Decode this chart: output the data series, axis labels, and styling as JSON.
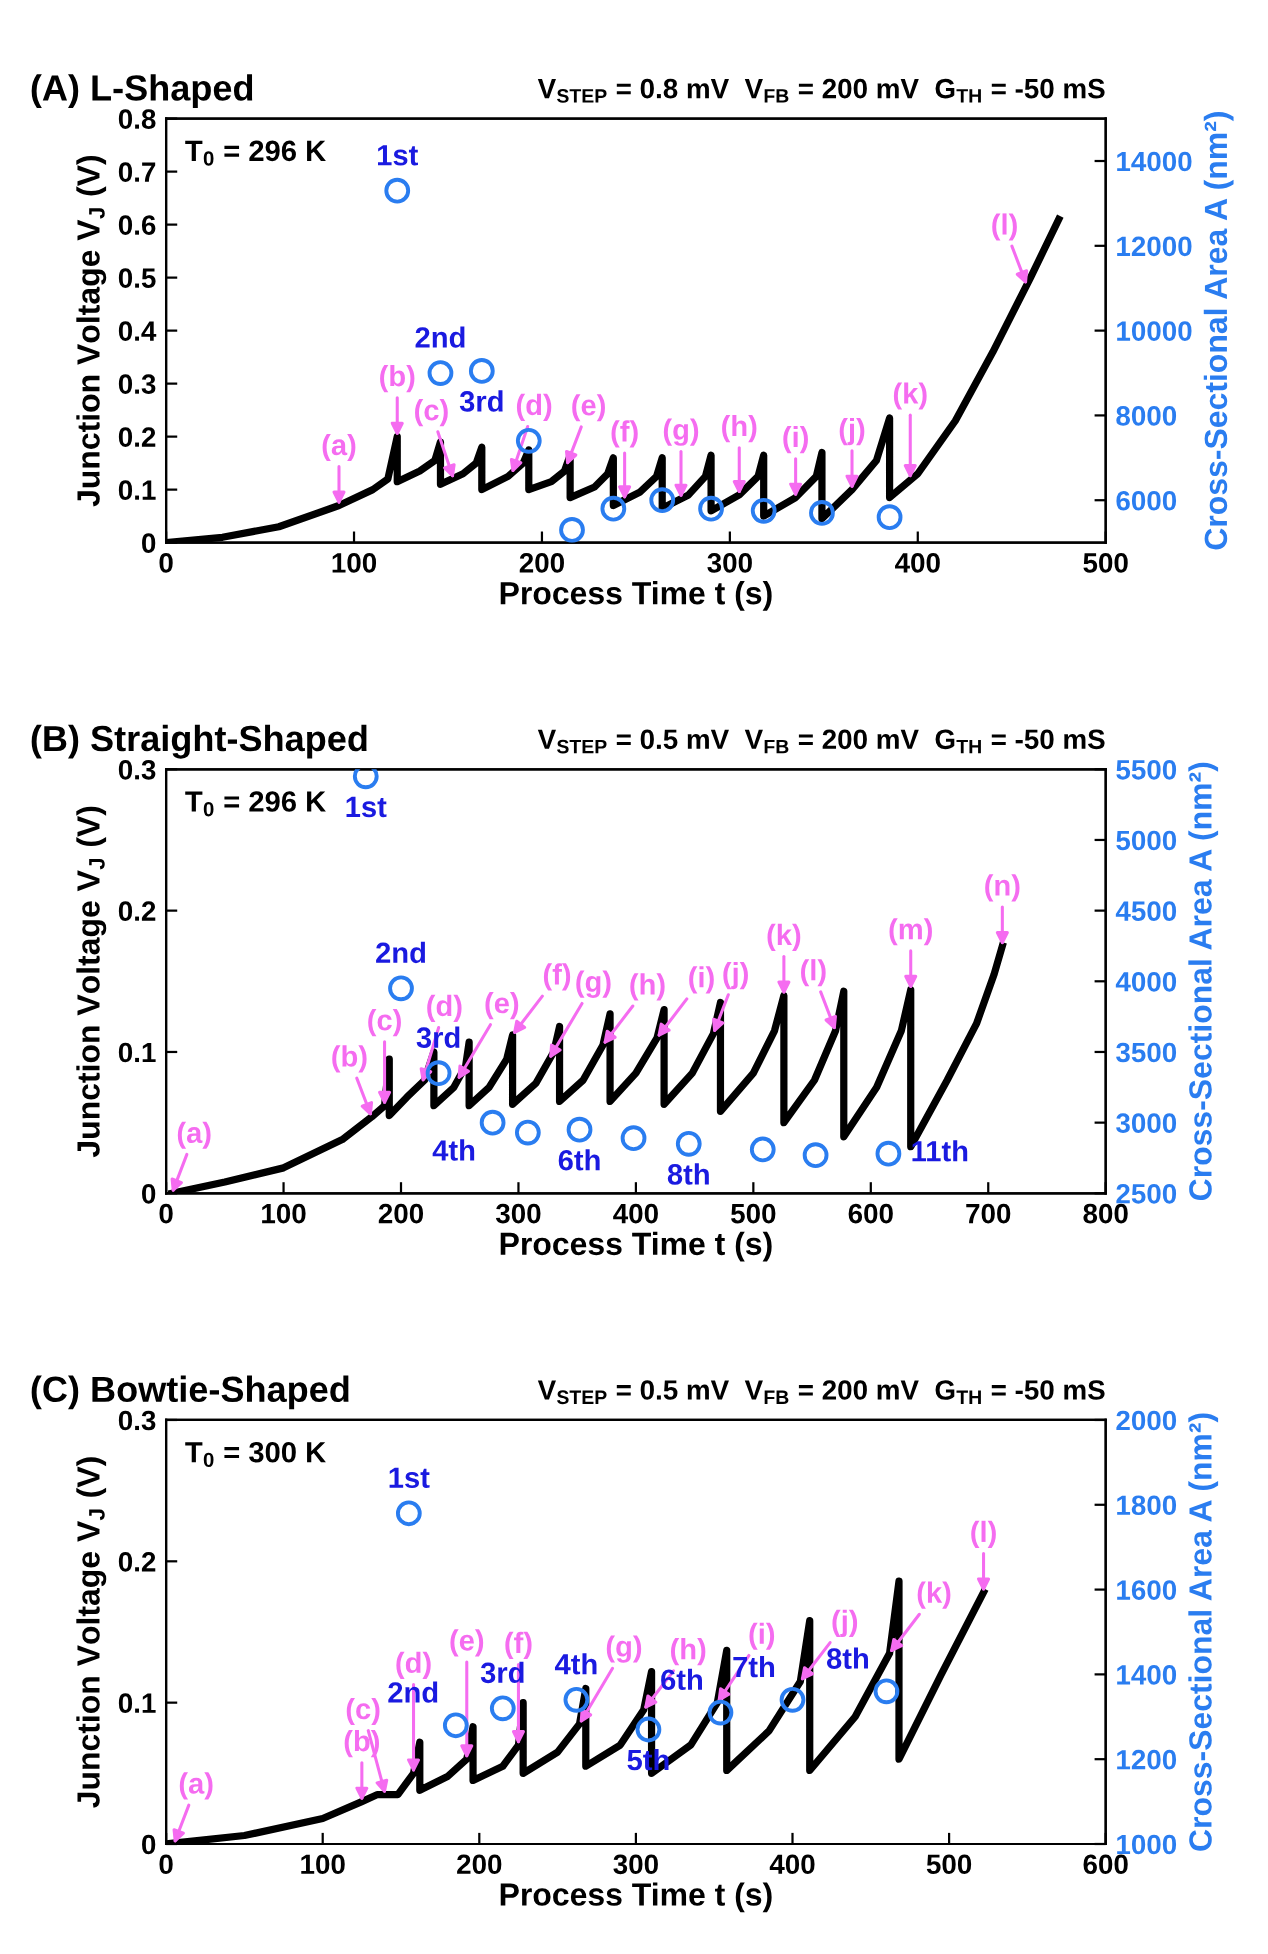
{
  "chart_data": [
    {
      "type": "line",
      "title": "(A) L-Shaped",
      "subtitle": "V$_{STEP}$ = 0.8 mV  V$_{FB}$ = 200 mV  G$_{TH}$ = -50 mS",
      "xlabel": "Process Time t (s)",
      "ylabel": "Junction Voltage V$_{J}$ (V)",
      "y2label": "Cross-Sectional Area A (nm²)",
      "xlim": [
        0,
        500
      ],
      "xticks": [
        0,
        100,
        200,
        300,
        400,
        500
      ],
      "ylim": [
        0,
        0.8
      ],
      "yticks": [
        0,
        0.1,
        0.2,
        0.3,
        0.4,
        0.5,
        0.6,
        0.7,
        0.8
      ],
      "y2lim": [
        5000,
        15000
      ],
      "y2ticks": [
        6000,
        8000,
        10000,
        12000,
        14000
      ],
      "series": [
        {
          "type": "line",
          "color": "#000000",
          "x": [
            0,
            30,
            60,
            92,
            110,
            118,
            123,
            123,
            135,
            143,
            146,
            146,
            158,
            165,
            168,
            168,
            182,
            190,
            193,
            193,
            205,
            212,
            215,
            215,
            228,
            235,
            238,
            238,
            252,
            261,
            264,
            264,
            278,
            287,
            290,
            290,
            305,
            315,
            318,
            318,
            335,
            346,
            349,
            349,
            365,
            378,
            385,
            385,
            400,
            420,
            440,
            460,
            475
          ],
          "values": [
            0,
            0.01,
            0.03,
            0.07,
            0.1,
            0.12,
            0.2,
            0.115,
            0.135,
            0.155,
            0.19,
            0.11,
            0.13,
            0.15,
            0.18,
            0.1,
            0.125,
            0.15,
            0.175,
            0.1,
            0.115,
            0.135,
            0.165,
            0.085,
            0.105,
            0.13,
            0.16,
            0.07,
            0.095,
            0.125,
            0.16,
            0.065,
            0.09,
            0.125,
            0.165,
            0.06,
            0.09,
            0.125,
            0.165,
            0.05,
            0.085,
            0.125,
            0.17,
            0.045,
            0.1,
            0.155,
            0.235,
            0.085,
            0.13,
            0.23,
            0.36,
            0.5,
            0.61
          ]
        },
        {
          "type": "scatter",
          "axis": "y2",
          "marker": "circle",
          "color": "#2a7df0",
          "name": "1st",
          "x": [
            123
          ],
          "values": [
            13300
          ]
        },
        {
          "type": "scatter",
          "axis": "y2",
          "marker": "circle",
          "color": "#2a7df0",
          "name": "2nd",
          "x": [
            146
          ],
          "values": [
            9000
          ]
        },
        {
          "type": "scatter",
          "axis": "y2",
          "marker": "circle",
          "color": "#2a7df0",
          "name": "3rd",
          "x": [
            168
          ],
          "values": [
            9050
          ]
        },
        {
          "type": "scatter",
          "axis": "y2",
          "marker": "circle",
          "color": "#2a7df0",
          "x": [
            193,
            216,
            238,
            264,
            290,
            318,
            349,
            385
          ],
          "values": [
            7400,
            5300,
            5800,
            6000,
            5800,
            5750,
            5700,
            5600
          ]
        }
      ],
      "annotations": [
        "T$_{0}$ = 296 K",
        {
          "text": "(a)",
          "x": 92,
          "y": 0.07
        },
        {
          "text": "(b)",
          "x": 123,
          "y": 0.2
        },
        {
          "text": "(c)",
          "x": 153,
          "y": 0.12
        },
        {
          "text": "(d)",
          "x": 184,
          "y": 0.13
        },
        {
          "text": "(e)",
          "x": 213,
          "y": 0.145
        },
        {
          "text": "(f)",
          "x": 244,
          "y": 0.08
        },
        {
          "text": "(g)",
          "x": 274,
          "y": 0.083
        },
        {
          "text": "(h)",
          "x": 305,
          "y": 0.09
        },
        {
          "text": "(i)",
          "x": 335,
          "y": 0.085
        },
        {
          "text": "(j)",
          "x": 365,
          "y": 0.1
        },
        {
          "text": "(k)",
          "x": 396,
          "y": 0.12
        },
        {
          "text": "(l)",
          "x": 458,
          "y": 0.486
        }
      ]
    },
    {
      "type": "line",
      "title": "(B) Straight-Shaped",
      "subtitle": "V$_{STEP}$ = 0.5 mV  V$_{FB}$ = 200 mV  G$_{TH}$ = -50 mS",
      "xlabel": "Process Time t (s)",
      "ylabel": "Junction Voltage V$_{J}$ (V)",
      "y2label": "Cross-Sectional Area A (nm²)",
      "xlim": [
        0,
        800
      ],
      "xticks": [
        0,
        100,
        200,
        300,
        400,
        500,
        600,
        700,
        800
      ],
      "ylim": [
        0,
        0.3
      ],
      "yticks": [
        0,
        0.1,
        0.2,
        0.3
      ],
      "y2lim": [
        2500,
        5500
      ],
      "y2ticks": [
        2500,
        3000,
        3500,
        4000,
        4500,
        5000,
        5500
      ],
      "series": [
        {
          "type": "line",
          "color": "#000000",
          "x": [
            5,
            50,
            100,
            150,
            175,
            186,
            190,
            190,
            205,
            220,
            228,
            228,
            245,
            255,
            258,
            258,
            275,
            290,
            295,
            295,
            315,
            330,
            335,
            335,
            355,
            372,
            378,
            378,
            400,
            418,
            424,
            424,
            448,
            466,
            472,
            472,
            500,
            518,
            526,
            526,
            552,
            570,
            577,
            577,
            605,
            626,
            634,
            634,
            665,
            690,
            705,
            712
          ],
          "values": [
            0,
            0.008,
            0.018,
            0.038,
            0.054,
            0.062,
            0.095,
            0.055,
            0.068,
            0.08,
            0.1,
            0.062,
            0.075,
            0.09,
            0.107,
            0.062,
            0.075,
            0.095,
            0.112,
            0.063,
            0.078,
            0.1,
            0.118,
            0.065,
            0.08,
            0.105,
            0.127,
            0.065,
            0.085,
            0.11,
            0.13,
            0.063,
            0.085,
            0.113,
            0.135,
            0.058,
            0.085,
            0.115,
            0.14,
            0.05,
            0.08,
            0.115,
            0.143,
            0.04,
            0.075,
            0.115,
            0.144,
            0.033,
            0.08,
            0.12,
            0.155,
            0.175
          ]
        },
        {
          "type": "scatter",
          "axis": "y2",
          "marker": "circle",
          "color": "#2a7df0",
          "name": "1st",
          "x": [
            170
          ],
          "values": [
            5450
          ]
        },
        {
          "type": "scatter",
          "axis": "y2",
          "marker": "circle",
          "color": "#2a7df0",
          "name": "2nd",
          "x": [
            200
          ],
          "values": [
            3950
          ]
        },
        {
          "type": "scatter",
          "axis": "y2",
          "marker": "circle",
          "color": "#2a7df0",
          "name": "3rd",
          "x": [
            232
          ],
          "values": [
            3350
          ]
        },
        {
          "type": "scatter",
          "axis": "y2",
          "marker": "circle",
          "color": "#2a7df0",
          "name": "4th",
          "x": [
            278
          ],
          "values": [
            3000
          ]
        },
        {
          "type": "scatter",
          "axis": "y2",
          "marker": "circle",
          "color": "#2a7df0",
          "name": "6th",
          "x": [
            352
          ],
          "values": [
            2950
          ]
        },
        {
          "type": "scatter",
          "axis": "y2",
          "marker": "circle",
          "color": "#2a7df0",
          "name": "8th",
          "x": [
            445
          ],
          "values": [
            2850
          ]
        },
        {
          "type": "scatter",
          "axis": "y2",
          "marker": "circle",
          "color": "#2a7df0",
          "name": "11th",
          "x": [
            615
          ],
          "values": [
            2780
          ]
        },
        {
          "type": "scatter",
          "axis": "y2",
          "marker": "circle",
          "color": "#2a7df0",
          "x": [
            308,
            398,
            508,
            553
          ],
          "values": [
            2930,
            2890,
            2810,
            2770
          ]
        }
      ],
      "annotations": [
        "T$_{0}$ = 296 K",
        {
          "text": "(a)",
          "x": 5,
          "y": 0
        },
        {
          "text": "(b)",
          "x": 175,
          "y": 0.054
        },
        {
          "text": "(c)",
          "x": 186,
          "y": 0.062
        },
        {
          "text": "(d)",
          "x": 218,
          "y": 0.078
        },
        {
          "text": "(e)",
          "x": 248,
          "y": 0.08
        },
        {
          "text": "(f)",
          "x": 295,
          "y": 0.112
        },
        {
          "text": "(g)",
          "x": 326,
          "y": 0.095
        },
        {
          "text": "(h)",
          "x": 372,
          "y": 0.105
        },
        {
          "text": "(i)",
          "x": 418,
          "y": 0.11
        },
        {
          "text": "(j)",
          "x": 466,
          "y": 0.113
        },
        {
          "text": "(k)",
          "x": 526,
          "y": 0.14
        },
        {
          "text": "(l)",
          "x": 570,
          "y": 0.115
        },
        {
          "text": "(m)",
          "x": 634,
          "y": 0.144
        },
        {
          "text": "(n)",
          "x": 712,
          "y": 0.175
        }
      ]
    },
    {
      "type": "line",
      "title": "(C) Bowtie-Shaped",
      "subtitle": "V$_{STEP}$ = 0.5 mV  V$_{FB}$ = 200 mV  G$_{TH}$ = -50 mS",
      "xlabel": "Process Time t (s)",
      "ylabel": "Junction Voltage V$_{J}$ (V)",
      "y2label": "Cross-Sectional Area A (nm²)",
      "xlim": [
        0,
        600
      ],
      "xticks": [
        0,
        100,
        200,
        300,
        400,
        500,
        600
      ],
      "ylim": [
        0,
        0.3
      ],
      "yticks": [
        0,
        0.1,
        0.2,
        0.3
      ],
      "y2lim": [
        1000,
        2000
      ],
      "y2ticks": [
        1000,
        1200,
        1400,
        1600,
        1800,
        2000
      ],
      "series": [
        {
          "type": "line",
          "color": "#000000",
          "x": [
            0,
            50,
            100,
            125,
            135,
            148,
            158,
            162,
            162,
            180,
            192,
            196,
            196,
            215,
            225,
            228,
            228,
            250,
            264,
            268,
            268,
            290,
            305,
            310,
            310,
            335,
            352,
            358,
            358,
            385,
            405,
            411,
            411,
            440,
            462,
            468,
            468,
            495,
            522
          ],
          "values": [
            0,
            0.006,
            0.018,
            0.03,
            0.035,
            0.035,
            0.05,
            0.072,
            0.038,
            0.048,
            0.06,
            0.083,
            0.045,
            0.055,
            0.07,
            0.1,
            0.05,
            0.065,
            0.085,
            0.11,
            0.055,
            0.07,
            0.095,
            0.122,
            0.05,
            0.07,
            0.1,
            0.137,
            0.052,
            0.08,
            0.115,
            0.158,
            0.052,
            0.09,
            0.135,
            0.186,
            0.06,
            0.12,
            0.178
          ]
        },
        {
          "type": "scatter",
          "axis": "y2",
          "marker": "circle",
          "color": "#2a7df0",
          "name": "1st",
          "x": [
            155
          ],
          "values": [
            1780
          ]
        },
        {
          "type": "scatter",
          "axis": "y2",
          "marker": "circle",
          "color": "#2a7df0",
          "name": "2nd",
          "x": [
            185
          ],
          "values": [
            1280
          ]
        },
        {
          "type": "scatter",
          "axis": "y2",
          "marker": "circle",
          "color": "#2a7df0",
          "name": "3rd",
          "x": [
            215
          ],
          "values": [
            1320
          ]
        },
        {
          "type": "scatter",
          "axis": "y2",
          "marker": "circle",
          "color": "#2a7df0",
          "name": "4th",
          "x": [
            262
          ],
          "values": [
            1340
          ]
        },
        {
          "type": "scatter",
          "axis": "y2",
          "marker": "circle",
          "color": "#2a7df0",
          "name": "5th",
          "x": [
            308
          ],
          "values": [
            1270
          ]
        },
        {
          "type": "scatter",
          "axis": "y2",
          "marker": "circle",
          "color": "#2a7df0",
          "name": "6th",
          "x": [
            354
          ],
          "values": [
            1310
          ]
        },
        {
          "type": "scatter",
          "axis": "y2",
          "marker": "circle",
          "color": "#2a7df0",
          "name": "7th",
          "x": [
            400
          ],
          "values": [
            1340
          ]
        },
        {
          "type": "scatter",
          "axis": "y2",
          "marker": "circle",
          "color": "#2a7df0",
          "name": "8th",
          "x": [
            460
          ],
          "values": [
            1360
          ]
        }
      ],
      "annotations": [
        "T$_{0}$ = 300 K",
        {
          "text": "(a)",
          "x": 5,
          "y": 0
        },
        {
          "text": "(b)",
          "x": 125,
          "y": 0.03
        },
        {
          "text": "(c)",
          "x": 140,
          "y": 0.035
        },
        {
          "text": "(d)",
          "x": 158,
          "y": 0.05
        },
        {
          "text": "(e)",
          "x": 192,
          "y": 0.06
        },
        {
          "text": "(f)",
          "x": 225,
          "y": 0.07
        },
        {
          "text": "(g)",
          "x": 264,
          "y": 0.085
        },
        {
          "text": "(h)",
          "x": 305,
          "y": 0.095
        },
        {
          "text": "(i)",
          "x": 352,
          "y": 0.1
        },
        {
          "text": "(j)",
          "x": 405,
          "y": 0.115
        },
        {
          "text": "(k)",
          "x": 462,
          "y": 0.135
        },
        {
          "text": "(l)",
          "x": 522,
          "y": 0.178
        }
      ]
    }
  ]
}
